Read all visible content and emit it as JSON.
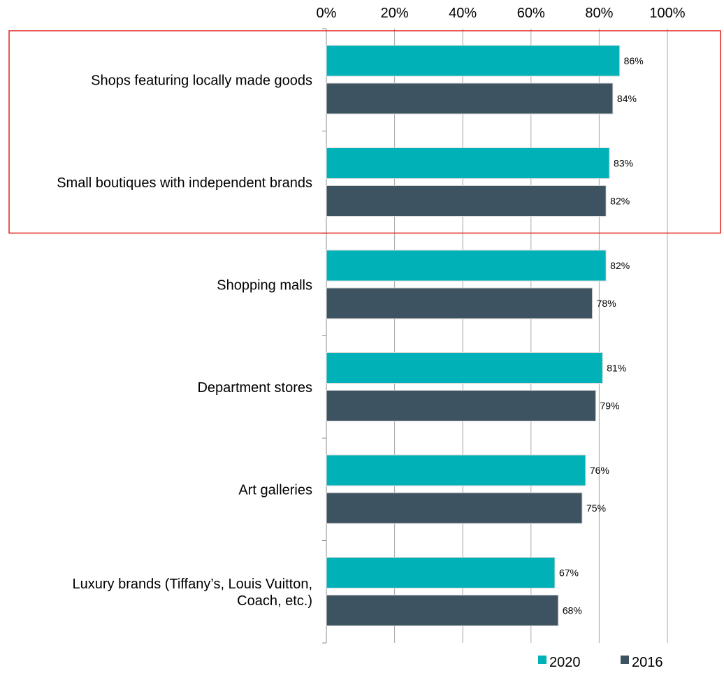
{
  "chart_data": {
    "type": "bar",
    "orientation": "horizontal",
    "categories": [
      "Shops featuring locally made goods",
      "Small boutiques with independent brands",
      "Shopping malls",
      "Department stores",
      "Art galleries",
      "Luxury brands (Tiffany’s, Louis Vuitton, Coach, etc.)"
    ],
    "series": [
      {
        "name": "2020",
        "values": [
          86,
          83,
          82,
          81,
          76,
          67
        ],
        "labels": [
          "86%",
          "83%",
          "82%",
          "81%",
          "76%",
          "67%"
        ],
        "color": "#00b2b8"
      },
      {
        "name": "2016",
        "values": [
          84,
          82,
          78,
          79,
          75,
          68
        ],
        "labels": [
          "84%",
          "82%",
          "78%",
          "79%",
          "75%",
          "68%"
        ],
        "color": "#3d5361"
      }
    ],
    "xlim": [
      0,
      100
    ],
    "x_ticks": [
      0,
      20,
      40,
      60,
      80,
      100
    ],
    "x_tick_labels": [
      "0%",
      "20%",
      "40%",
      "60%",
      "80%",
      "100%"
    ],
    "x_axis_position": "top",
    "grid": true,
    "legend_position": "bottom-right",
    "highlight_box": {
      "categories": [
        0,
        1
      ],
      "color": "#e0201b"
    }
  }
}
